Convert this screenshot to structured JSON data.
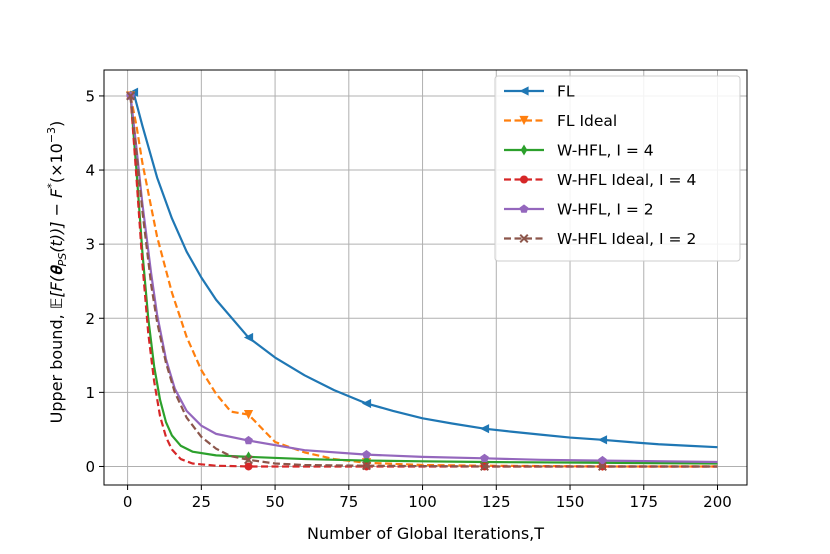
{
  "chart_data": {
    "type": "line",
    "xlabel": "Number of Global Iterations,T",
    "ylabel_prefix": "Upper bound, ",
    "ylabel_math": "𝔼[F(𝛉",
    "ylabel_sub": "PS",
    "ylabel_mid": "(t))] − F",
    "ylabel_sup_star": "*",
    "ylabel_scale": "(×10",
    "ylabel_exp": "−3",
    "ylabel_close": ")",
    "xlim": [
      -8,
      210
    ],
    "ylim": [
      -0.25,
      5.35
    ],
    "xticks": [
      0,
      25,
      50,
      75,
      100,
      125,
      150,
      175,
      200
    ],
    "yticks": [
      0,
      1,
      2,
      3,
      4,
      5
    ],
    "grid": true,
    "legend_position": "top-right",
    "marker_x": [
      1,
      41,
      81,
      121,
      161
    ],
    "series": [
      {
        "name": "FL",
        "color": "#1f77b4",
        "dash": "solid",
        "marker": "triangle-left",
        "x": [
          2,
          5,
          10,
          15,
          20,
          25,
          30,
          41,
          50,
          60,
          70,
          81,
          90,
          100,
          110,
          121,
          130,
          140,
          150,
          161,
          170,
          180,
          190,
          200
        ],
        "y": [
          5.05,
          4.6,
          3.9,
          3.35,
          2.9,
          2.55,
          2.25,
          1.74,
          1.47,
          1.23,
          1.03,
          0.85,
          0.75,
          0.65,
          0.58,
          0.51,
          0.47,
          0.43,
          0.39,
          0.36,
          0.33,
          0.3,
          0.28,
          0.26
        ]
      },
      {
        "name": "FL Ideal",
        "color": "#ff7f0e",
        "dash": "dashed",
        "marker": "triangle-down",
        "x": [
          1,
          3,
          5,
          8,
          10,
          15,
          20,
          25,
          30,
          35,
          41,
          50,
          60,
          70,
          81,
          100,
          121,
          161,
          200
        ],
        "y": [
          5.0,
          4.6,
          4.1,
          3.5,
          3.1,
          2.35,
          1.75,
          1.3,
          0.98,
          0.74,
          0.7,
          0.33,
          0.19,
          0.1,
          0.05,
          0.02,
          0.01,
          0.0,
          0.0
        ]
      },
      {
        "name": "W-HFL, I = 4",
        "color": "#2ca02c",
        "dash": "solid",
        "marker": "thin-diamond",
        "x": [
          1,
          3,
          5,
          7,
          9,
          11,
          13,
          15,
          18,
          22,
          30,
          41,
          60,
          81,
          100,
          121,
          161,
          200
        ],
        "y": [
          5.0,
          4.0,
          2.9,
          2.0,
          1.35,
          0.9,
          0.6,
          0.42,
          0.28,
          0.2,
          0.15,
          0.13,
          0.1,
          0.08,
          0.07,
          0.06,
          0.05,
          0.04
        ]
      },
      {
        "name": "W-HFL Ideal, I = 4",
        "color": "#d62728",
        "dash": "dashed",
        "marker": "circle",
        "x": [
          1,
          3,
          5,
          7,
          9,
          11,
          13,
          15,
          18,
          22,
          30,
          41,
          81,
          121,
          161,
          200
        ],
        "y": [
          5.0,
          3.9,
          2.75,
          1.8,
          1.15,
          0.68,
          0.4,
          0.23,
          0.1,
          0.04,
          0.01,
          0.0,
          0.0,
          0.0,
          0.0,
          0.0
        ]
      },
      {
        "name": "W-HFL, I = 2",
        "color": "#9467bd",
        "dash": "solid",
        "marker": "pentagon",
        "x": [
          1,
          3,
          5,
          8,
          10,
          13,
          16,
          20,
          25,
          30,
          41,
          60,
          81,
          100,
          121,
          140,
          161,
          200
        ],
        "y": [
          5.0,
          4.3,
          3.55,
          2.6,
          2.05,
          1.45,
          1.05,
          0.75,
          0.55,
          0.44,
          0.35,
          0.22,
          0.16,
          0.13,
          0.11,
          0.09,
          0.08,
          0.06
        ]
      },
      {
        "name": "W-HFL Ideal, I = 2",
        "color": "#8c564b",
        "dash": "dashed",
        "marker": "x",
        "x": [
          1,
          3,
          5,
          8,
          10,
          13,
          16,
          20,
          25,
          30,
          35,
          41,
          50,
          60,
          81,
          121,
          161,
          200
        ],
        "y": [
          5.0,
          4.25,
          3.45,
          2.45,
          1.95,
          1.4,
          1.0,
          0.66,
          0.4,
          0.24,
          0.14,
          0.09,
          0.04,
          0.02,
          0.01,
          0.0,
          0.0,
          0.0
        ]
      }
    ]
  }
}
